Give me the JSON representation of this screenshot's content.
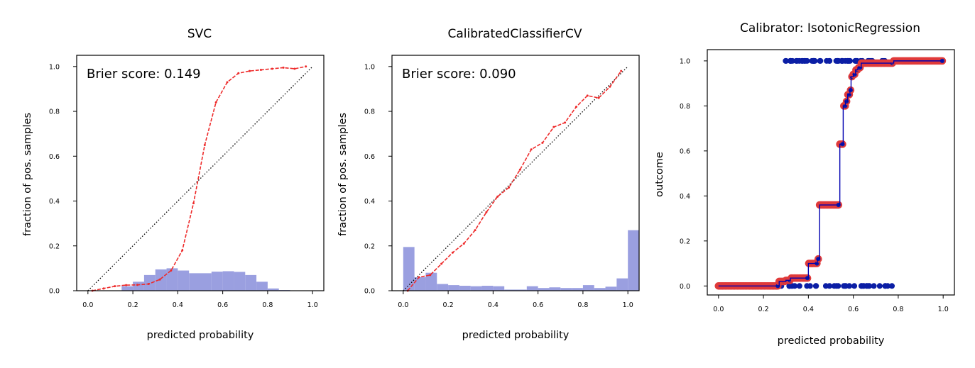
{
  "colors": {
    "calibration_curve": "#ee2a2a",
    "histogram": "#9a9fe0",
    "scatter_edge": "#e03a3a",
    "scatter_fill": "#0b1ea5",
    "step_line": "#0000b0",
    "diagonal": "#000000"
  },
  "chart_data": [
    {
      "type": "line+bar",
      "title": "SVC",
      "xlabel": "predicted probability",
      "ylabel": "fraction of pos. samples",
      "xlim": [
        -0.05,
        1.05
      ],
      "ylim": [
        0.0,
        1.05
      ],
      "xticks": [
        "0.0",
        "0.2",
        "0.4",
        "0.6",
        "0.8",
        "1.0"
      ],
      "yticks": [
        "0.0",
        "0.2",
        "0.4",
        "0.6",
        "0.8",
        "1.0"
      ],
      "annotation": "Brier score: 0.149",
      "reference_line": [
        [
          0,
          0
        ],
        [
          1,
          1
        ]
      ],
      "calibration_curve": {
        "x": [
          0.02,
          0.07,
          0.12,
          0.17,
          0.22,
          0.27,
          0.32,
          0.37,
          0.42,
          0.47,
          0.52,
          0.57,
          0.62,
          0.67,
          0.72,
          0.77,
          0.82,
          0.87,
          0.92,
          0.97
        ],
        "y": [
          0.0,
          0.01,
          0.02,
          0.025,
          0.026,
          0.03,
          0.05,
          0.09,
          0.18,
          0.39,
          0.65,
          0.84,
          0.93,
          0.97,
          0.98,
          0.985,
          0.99,
          0.995,
          0.99,
          1.0
        ]
      },
      "histogram": {
        "bin_edges": [
          0.15,
          0.2,
          0.25,
          0.3,
          0.35,
          0.4,
          0.45,
          0.5,
          0.55,
          0.6,
          0.65,
          0.7,
          0.75,
          0.8,
          0.85,
          0.9
        ],
        "values": [
          0.02,
          0.04,
          0.07,
          0.095,
          0.1,
          0.09,
          0.078,
          0.078,
          0.085,
          0.087,
          0.084,
          0.07,
          0.04,
          0.01,
          0.003
        ]
      }
    },
    {
      "type": "line+bar",
      "title": "CalibratedClassifierCV",
      "xlabel": "predicted probability",
      "ylabel": "fraction of pos. samples",
      "xlim": [
        -0.05,
        1.05
      ],
      "ylim": [
        0.0,
        1.05
      ],
      "xticks": [
        "0.0",
        "0.2",
        "0.4",
        "0.6",
        "0.8",
        "1.0"
      ],
      "yticks": [
        "0.0",
        "0.2",
        "0.4",
        "0.6",
        "0.8",
        "1.0"
      ],
      "annotation": "Brier score: 0.090",
      "reference_line": [
        [
          0,
          0
        ],
        [
          1,
          1
        ]
      ],
      "calibration_curve": {
        "x": [
          0.02,
          0.07,
          0.12,
          0.17,
          0.22,
          0.27,
          0.32,
          0.37,
          0.42,
          0.47,
          0.52,
          0.57,
          0.62,
          0.67,
          0.72,
          0.77,
          0.82,
          0.87,
          0.92,
          0.97
        ],
        "y": [
          0.0,
          0.06,
          0.07,
          0.12,
          0.17,
          0.21,
          0.27,
          0.35,
          0.42,
          0.46,
          0.54,
          0.63,
          0.66,
          0.73,
          0.75,
          0.82,
          0.87,
          0.86,
          0.91,
          0.98
        ]
      },
      "histogram": {
        "bin_edges": [
          0.0,
          0.05,
          0.1,
          0.15,
          0.2,
          0.25,
          0.3,
          0.35,
          0.4,
          0.45,
          0.5,
          0.55,
          0.6,
          0.65,
          0.7,
          0.75,
          0.8,
          0.85,
          0.9,
          0.95,
          1.0
        ],
        "values": [
          0.195,
          0.06,
          0.08,
          0.03,
          0.025,
          0.022,
          0.02,
          0.022,
          0.02,
          0.005,
          0.005,
          0.02,
          0.012,
          0.015,
          0.012,
          0.012,
          0.025,
          0.012,
          0.018,
          0.055,
          0.27
        ]
      }
    },
    {
      "type": "scatter+step",
      "title": "Calibrator: IsotonicRegression",
      "xlabel": "predicted probability",
      "ylabel": "outcome",
      "xlim": [
        -0.05,
        1.05
      ],
      "ylim": [
        -0.04,
        1.05
      ],
      "xticks": [
        "0.0",
        "0.2",
        "0.4",
        "0.6",
        "0.8",
        "1.0"
      ],
      "yticks": [
        "0.0",
        "0.2",
        "0.4",
        "0.6",
        "0.8",
        "1.0"
      ],
      "outcome_positive_range": [
        0.26,
        0.86
      ],
      "outcome_negative_range": [
        0.0,
        0.78
      ],
      "isotonic_fit": {
        "x": [
          0.0,
          0.26,
          0.27,
          0.3,
          0.32,
          0.39,
          0.4,
          0.44,
          0.45,
          0.53,
          0.54,
          0.555,
          0.565,
          0.575,
          0.585,
          0.59,
          0.6,
          0.61,
          0.62,
          0.635,
          0.66,
          0.69,
          0.75,
          0.78,
          0.8,
          1.0
        ],
        "y": [
          0.0,
          0.0,
          0.02,
          0.025,
          0.035,
          0.035,
          0.1,
          0.12,
          0.36,
          0.36,
          0.63,
          0.8,
          0.82,
          0.85,
          0.87,
          0.93,
          0.94,
          0.96,
          0.97,
          0.99,
          0.99,
          0.99,
          0.99,
          1.0,
          1.0,
          1.0
        ]
      }
    }
  ]
}
